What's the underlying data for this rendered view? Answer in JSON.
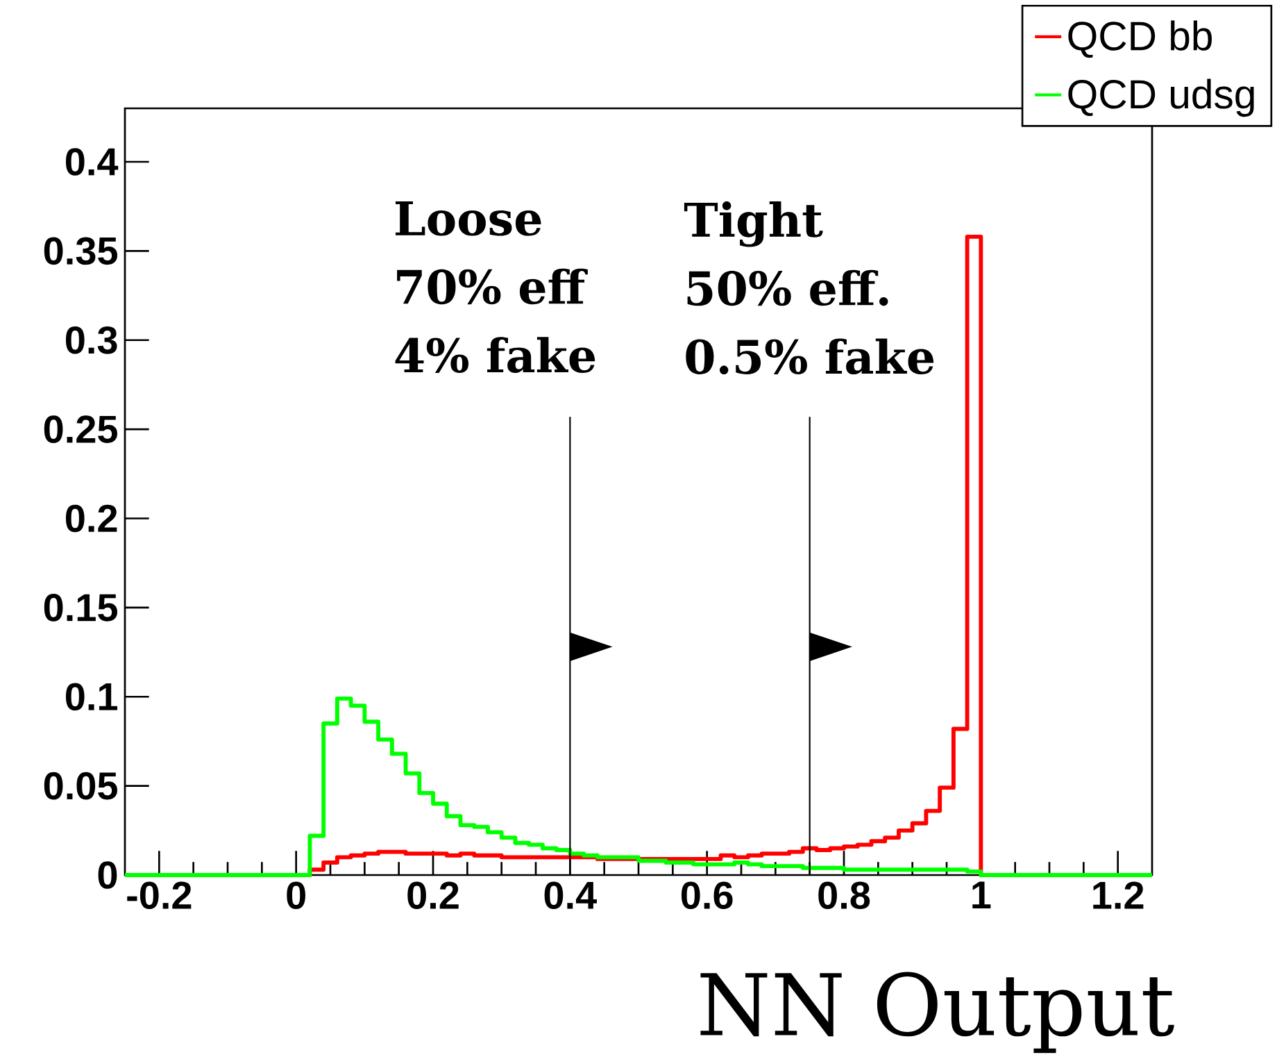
{
  "chart_data": {
    "type": "step",
    "x": [
      -0.25,
      0,
      0.02,
      0.04,
      0.06,
      0.08,
      0.1,
      0.12,
      0.14,
      0.16,
      0.18,
      0.2,
      0.22,
      0.24,
      0.26,
      0.28,
      0.3,
      0.32,
      0.34,
      0.36,
      0.38,
      0.4,
      0.42,
      0.44,
      0.46,
      0.48,
      0.5,
      0.52,
      0.54,
      0.56,
      0.58,
      0.6,
      0.62,
      0.64,
      0.66,
      0.68,
      0.7,
      0.72,
      0.74,
      0.76,
      0.78,
      0.8,
      0.82,
      0.84,
      0.86,
      0.88,
      0.9,
      0.92,
      0.94,
      0.96,
      0.98,
      1.0,
      1.25
    ],
    "series": [
      {
        "name": "QCD bb",
        "color": "#ff0000",
        "values": [
          0,
          0,
          0.003,
          0.007,
          0.01,
          0.011,
          0.012,
          0.013,
          0.013,
          0.012,
          0.012,
          0.012,
          0.011,
          0.012,
          0.011,
          0.011,
          0.01,
          0.01,
          0.01,
          0.01,
          0.01,
          0.01,
          0.01,
          0.009,
          0.009,
          0.009,
          0.009,
          0.009,
          0.009,
          0.009,
          0.009,
          0.009,
          0.011,
          0.01,
          0.011,
          0.012,
          0.012,
          0.013,
          0.015,
          0.014,
          0.015,
          0.016,
          0.017,
          0.019,
          0.021,
          0.025,
          0.029,
          0.036,
          0.049,
          0.082,
          0.358,
          0,
          0
        ]
      },
      {
        "name": "QCD udsg",
        "color": "#00ff00",
        "values": [
          0,
          0,
          0.022,
          0.085,
          0.099,
          0.095,
          0.086,
          0.076,
          0.068,
          0.057,
          0.046,
          0.04,
          0.033,
          0.028,
          0.027,
          0.024,
          0.021,
          0.018,
          0.017,
          0.015,
          0.014,
          0.012,
          0.011,
          0.01,
          0.01,
          0.01,
          0.008,
          0.008,
          0.007,
          0.007,
          0.006,
          0.006,
          0.006,
          0.007,
          0.006,
          0.005,
          0.005,
          0.005,
          0.004,
          0.004,
          0.004,
          0.003,
          0.003,
          0.003,
          0.003,
          0.003,
          0.003,
          0.003,
          0.003,
          0.003,
          0.002,
          0,
          0
        ]
      }
    ],
    "xlabel": "NN Output",
    "xlim": [
      -0.25,
      1.25
    ],
    "xticks": [
      -0.2,
      0,
      0.2,
      0.4,
      0.6,
      0.8,
      1,
      1.2
    ],
    "ylim": [
      0,
      0.43
    ],
    "yticks": [
      0,
      0.05,
      0.1,
      0.15,
      0.2,
      0.25,
      0.3,
      0.35,
      0.4
    ],
    "ref_lines": [
      {
        "axis": "x",
        "value": 0.4
      },
      {
        "axis": "x",
        "value": 0.75
      }
    ],
    "annotations": [
      "Loose",
      "70% eff",
      "4% fake",
      "Tight",
      "50% eff.",
      "0.5% fake"
    ],
    "legend": "top right",
    "grid": false
  }
}
